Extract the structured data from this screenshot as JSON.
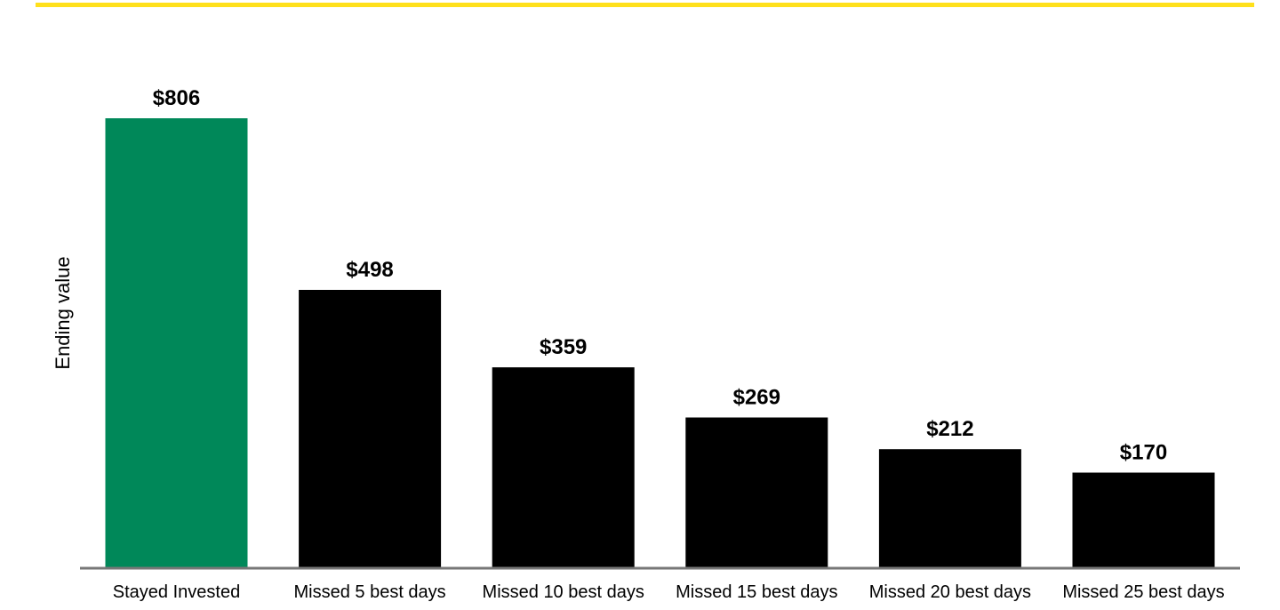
{
  "colors": {
    "accent_rule": "#FFE01B",
    "highlight_bar": "#008859",
    "bar": "#000000",
    "axis": "#777777"
  },
  "chart_data": {
    "type": "bar",
    "title": "",
    "xlabel": "",
    "ylabel": "Ending value",
    "categories": [
      "Stayed Invested",
      "Missed 5 best days",
      "Missed 10 best days",
      "Missed 15 best days",
      "Missed 20 best days",
      "Missed 25 best days"
    ],
    "values": [
      806,
      498,
      359,
      269,
      212,
      170
    ],
    "value_labels": [
      "$806",
      "$498",
      "$359",
      "$269",
      "$212",
      "$170"
    ],
    "highlight_index": 0,
    "ylim": [
      0,
      806
    ],
    "grid": false,
    "legend": "none"
  }
}
